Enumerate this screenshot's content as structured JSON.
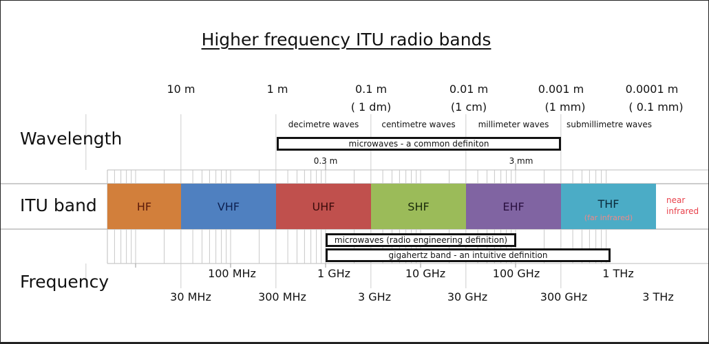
{
  "title": "Higher frequency ITU radio bands",
  "axes": {
    "wavelength": "Wavelength",
    "itu_band": "ITU band",
    "frequency": "Frequency"
  },
  "wavelength_labels": [
    {
      "main": "10 m",
      "sub": ""
    },
    {
      "main": "1 m",
      "sub": ""
    },
    {
      "main": "0.1 m",
      "sub": "( 1 dm)"
    },
    {
      "main": "0.01 m",
      "sub": "(1 cm)"
    },
    {
      "main": "0.001 m",
      "sub": "(1 mm)"
    },
    {
      "main": "0.0001 m",
      "sub": "( 0.1 mm)"
    }
  ],
  "wave_regions": [
    "decimetre waves",
    "centimetre waves",
    "millimeter waves",
    "submillimetre waves"
  ],
  "inner_wavelength_labels": [
    "0.3 m",
    "3 mm"
  ],
  "bands": [
    {
      "name": "HF",
      "sub": "",
      "color": "#d27f3b",
      "text": "#5a1a0a"
    },
    {
      "name": "VHF",
      "sub": "",
      "color": "#4f80c0",
      "text": "#0d2050"
    },
    {
      "name": "UHF",
      "sub": "",
      "color": "#c0504d",
      "text": "#3a0a0a"
    },
    {
      "name": "SHF",
      "sub": "",
      "color": "#9bbb59",
      "text": "#1a2a0a"
    },
    {
      "name": "EHF",
      "sub": "",
      "color": "#8064a2",
      "text": "#2a1040"
    },
    {
      "name": "THF",
      "sub": "(far infrared)",
      "color": "#4bacc6",
      "text": "#0a2a3a"
    }
  ],
  "near_infrared": "near infrared",
  "near_infrared_color": "#e8404a",
  "definitions": {
    "microwaves_common": "microwaves - a common definiton",
    "microwaves_radio": "microwaves (radio engineering definition)",
    "gigahertz_band": "gigahertz band - an intuitive definition"
  },
  "frequency_decade_labels": [
    "100 MHz",
    "1 GHz",
    "10 GHz",
    "100 GHz",
    "1 THz"
  ],
  "frequency_boundary_labels": [
    "30 MHz",
    "300 MHz",
    "3 GHz",
    "30 GHz",
    "300 GHz",
    "3 THz"
  ]
}
